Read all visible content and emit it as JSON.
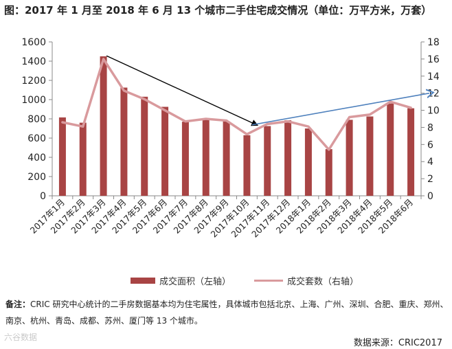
{
  "title": "图：2017 年 1 月至 2018 年 6 月 13 个城市二手住宅成交情况（单位：万平方米，万套）",
  "chart_data": {
    "type": "bar+line",
    "categories": [
      "2017年1月",
      "2017年2月",
      "2017年3月",
      "2017年4月",
      "2017年5月",
      "2017年6月",
      "2017年7月",
      "2017年8月",
      "2017年9月",
      "2017年10月",
      "2017年11月",
      "2017年12月",
      "2018年1月",
      "2018年2月",
      "2018年3月",
      "2018年4月",
      "2018年5月",
      "2018年6月"
    ],
    "series": [
      {
        "name": "成交面积（左轴）",
        "type": "bar",
        "axis": "left",
        "values": [
          815,
          760,
          1450,
          1125,
          1030,
          925,
          770,
          800,
          775,
          630,
          725,
          785,
          700,
          485,
          790,
          825,
          960,
          910
        ]
      },
      {
        "name": "成交套数（右轴）",
        "type": "line",
        "axis": "right",
        "values": [
          8.6,
          8.1,
          16.0,
          12.3,
          11.3,
          10.0,
          8.7,
          9.0,
          8.8,
          7.2,
          8.4,
          8.7,
          8.1,
          5.4,
          9.2,
          9.5,
          11.0,
          10.3
        ]
      }
    ],
    "left_axis": {
      "min": 0,
      "max": 1600,
      "ticks": [
        0,
        200,
        400,
        600,
        800,
        1000,
        1200,
        1400,
        1600
      ]
    },
    "right_axis": {
      "min": 0,
      "max": 18,
      "ticks": [
        0,
        2,
        4,
        6,
        8,
        10,
        12,
        14,
        16,
        18
      ]
    },
    "annotations": [
      {
        "type": "arrow",
        "color": "#000000",
        "from": {
          "x_index": 2.15,
          "y_left": 1455
        },
        "to": {
          "x_index": 9.5,
          "y_left": 735
        }
      },
      {
        "type": "arrow",
        "color": "#4f81bd",
        "from": {
          "x_index": 9.25,
          "y_right": 8.3
        },
        "to": {
          "x_index": 17.9,
          "y_right": 12.0
        }
      }
    ],
    "colors": {
      "bar": "#a84444",
      "line": "#d99a9d"
    },
    "grid": false,
    "legend_position": "bottom"
  },
  "legend": {
    "bar_label": "成交面积（左轴）",
    "line_label": "成交套数（右轴）"
  },
  "note": {
    "label": "备注：",
    "text": "CRIC 研究中心统计的二手房数据基本均为住宅属性，具体城市包括北京、上海、广州、深圳、合肥、重庆、郑州、南京、杭州、青岛、成都、苏州、厦门等 13 个城市。"
  },
  "watermark": "六谷数据",
  "source": "数据来源：CRIC2017"
}
